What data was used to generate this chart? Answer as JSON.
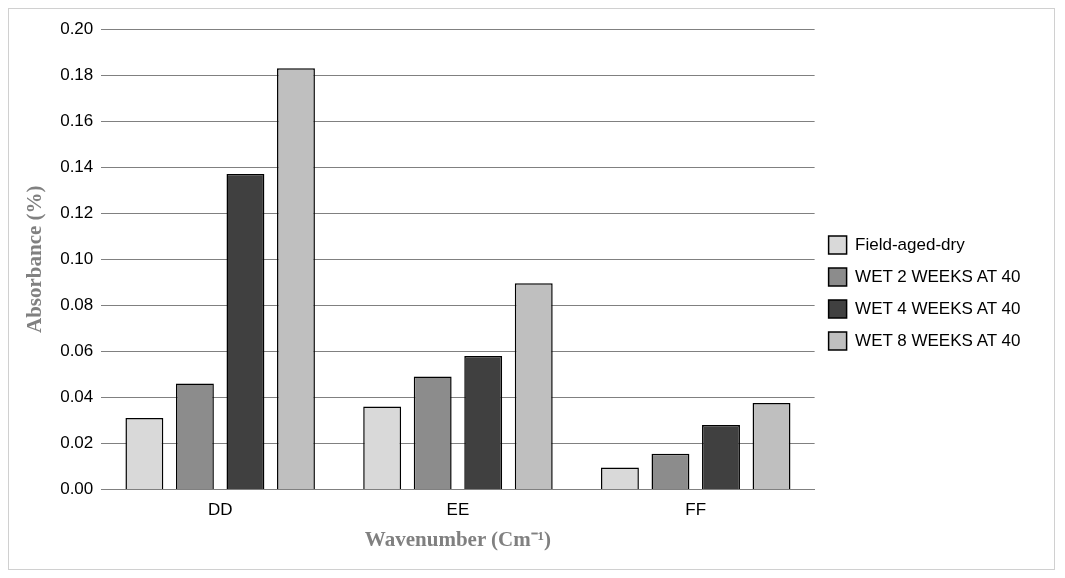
{
  "chart_data": {
    "type": "bar",
    "xlabel": "Wavenumber (Cm⁻¹)",
    "ylabel": "Absorbance (%)",
    "categories": [
      "DD",
      "EE",
      "FF"
    ],
    "series": [
      {
        "name": "Field-aged-dry",
        "color": "#d9d9d9",
        "values": [
          0.031,
          0.036,
          0.0095
        ]
      },
      {
        "name": "WET 2 WEEKS AT 40",
        "color": "#8c8c8c",
        "values": [
          0.046,
          0.049,
          0.0155
        ]
      },
      {
        "name": "WET 4 WEEKS AT 40",
        "color": "#404040",
        "values": [
          0.137,
          0.058,
          0.028
        ]
      },
      {
        "name": "WET 8 WEEKS AT 40",
        "color": "#bfbfbf",
        "values": [
          0.183,
          0.0895,
          0.0375
        ]
      }
    ],
    "ylim": [
      0,
      0.2
    ],
    "yticks": [
      {
        "value": 0,
        "label": "0.00"
      },
      {
        "value": 0.02,
        "label": "0.02"
      },
      {
        "value": 0.04,
        "label": "0.04"
      },
      {
        "value": 0.06,
        "label": "0.06"
      },
      {
        "value": 0.08,
        "label": "0.08"
      },
      {
        "value": 0.1,
        "label": "0.10"
      },
      {
        "value": 0.12,
        "label": "0.12"
      },
      {
        "value": 0.14,
        "label": "0.14"
      },
      {
        "value": 0.16,
        "label": "0.16"
      },
      {
        "value": 0.18,
        "label": "0.18"
      },
      {
        "value": 0.2,
        "label": "0.20"
      }
    ],
    "grid": "y",
    "legend": "right"
  }
}
